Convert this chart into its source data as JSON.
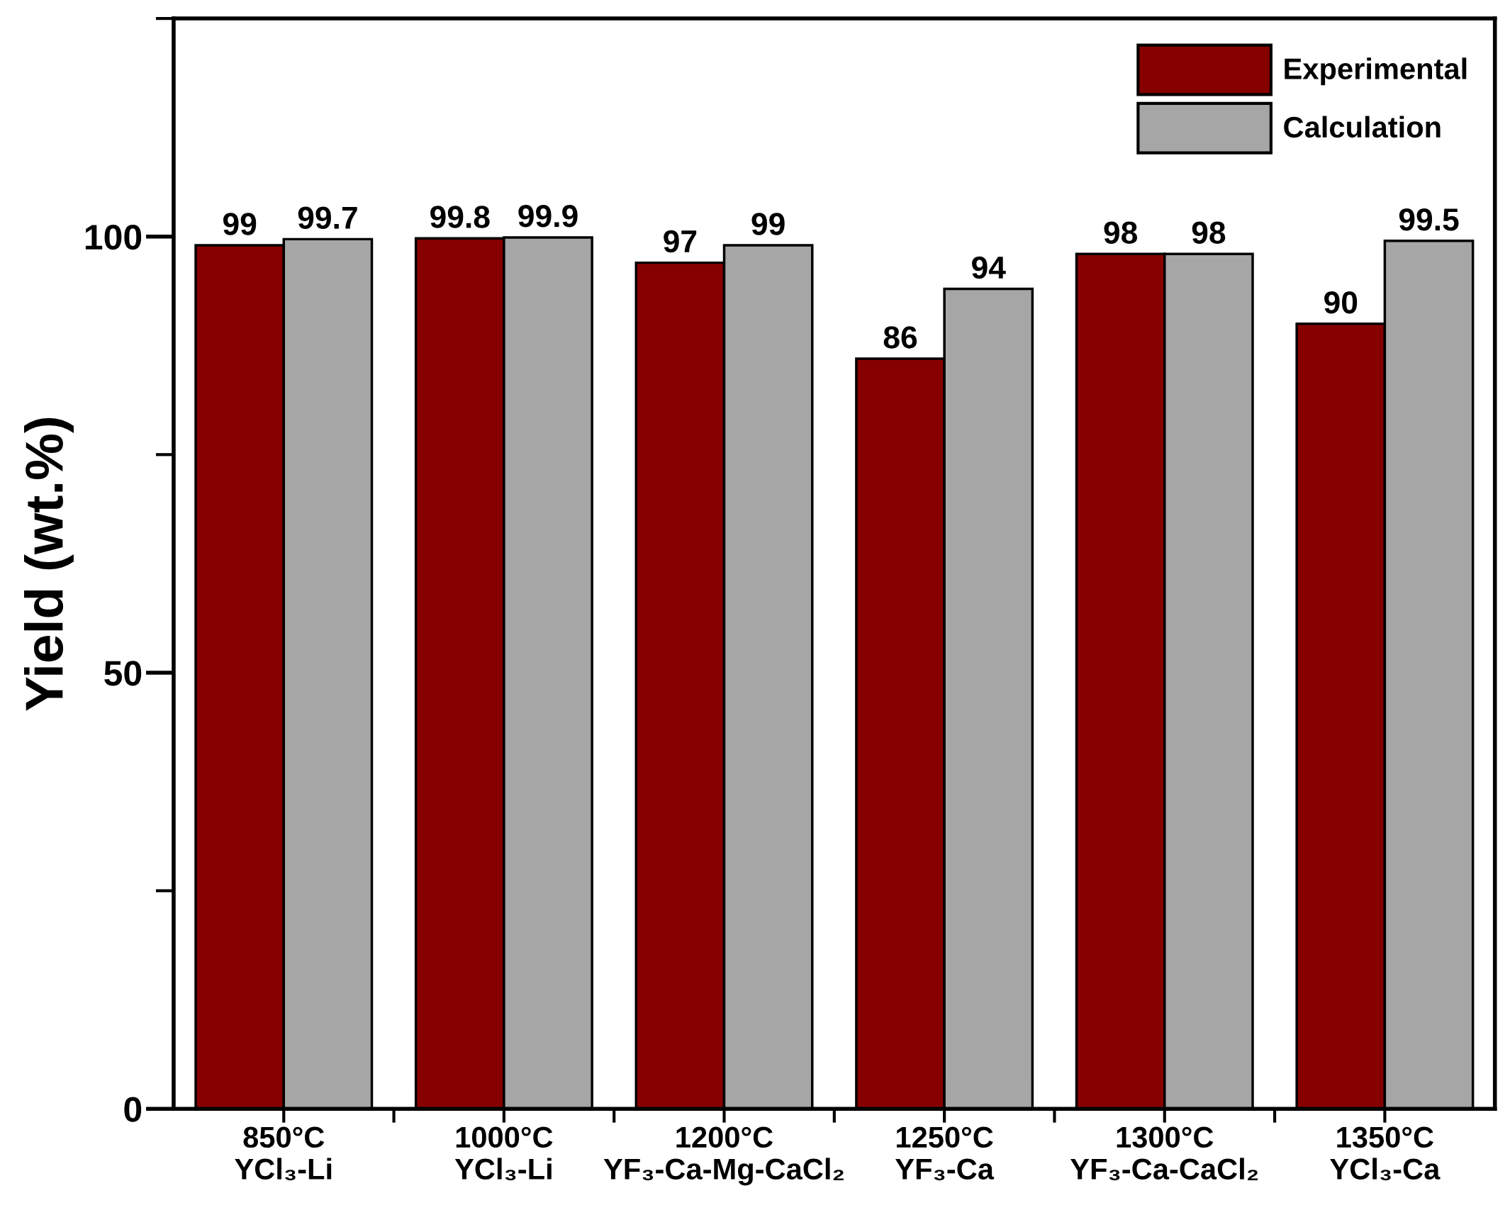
{
  "chart_data": {
    "type": "bar",
    "ylabel": "Yield (wt.%)",
    "categories": [
      "850°C\nYCl₃-Li",
      "1000°C\nYCl₃-Li",
      "1200°C\nYF₃-Ca-Mg-CaCl₂",
      "1250°C\nYF₃-Ca",
      "1300°C\nYF₃-Ca-CaCl₂",
      "1350°C\nYCl₃-Ca"
    ],
    "series": [
      {
        "name": "Experimental",
        "color": "#870000",
        "values": [
          99,
          99.8,
          97,
          86,
          98,
          90
        ]
      },
      {
        "name": "Calculation",
        "color": "#a6a6a6",
        "values": [
          99.7,
          99.9,
          99,
          94,
          98,
          99.5
        ]
      }
    ],
    "ylim": [
      0,
      125
    ],
    "yticks": [
      0,
      50,
      100
    ],
    "data_labels": true,
    "legend": "top right",
    "grid": false
  }
}
